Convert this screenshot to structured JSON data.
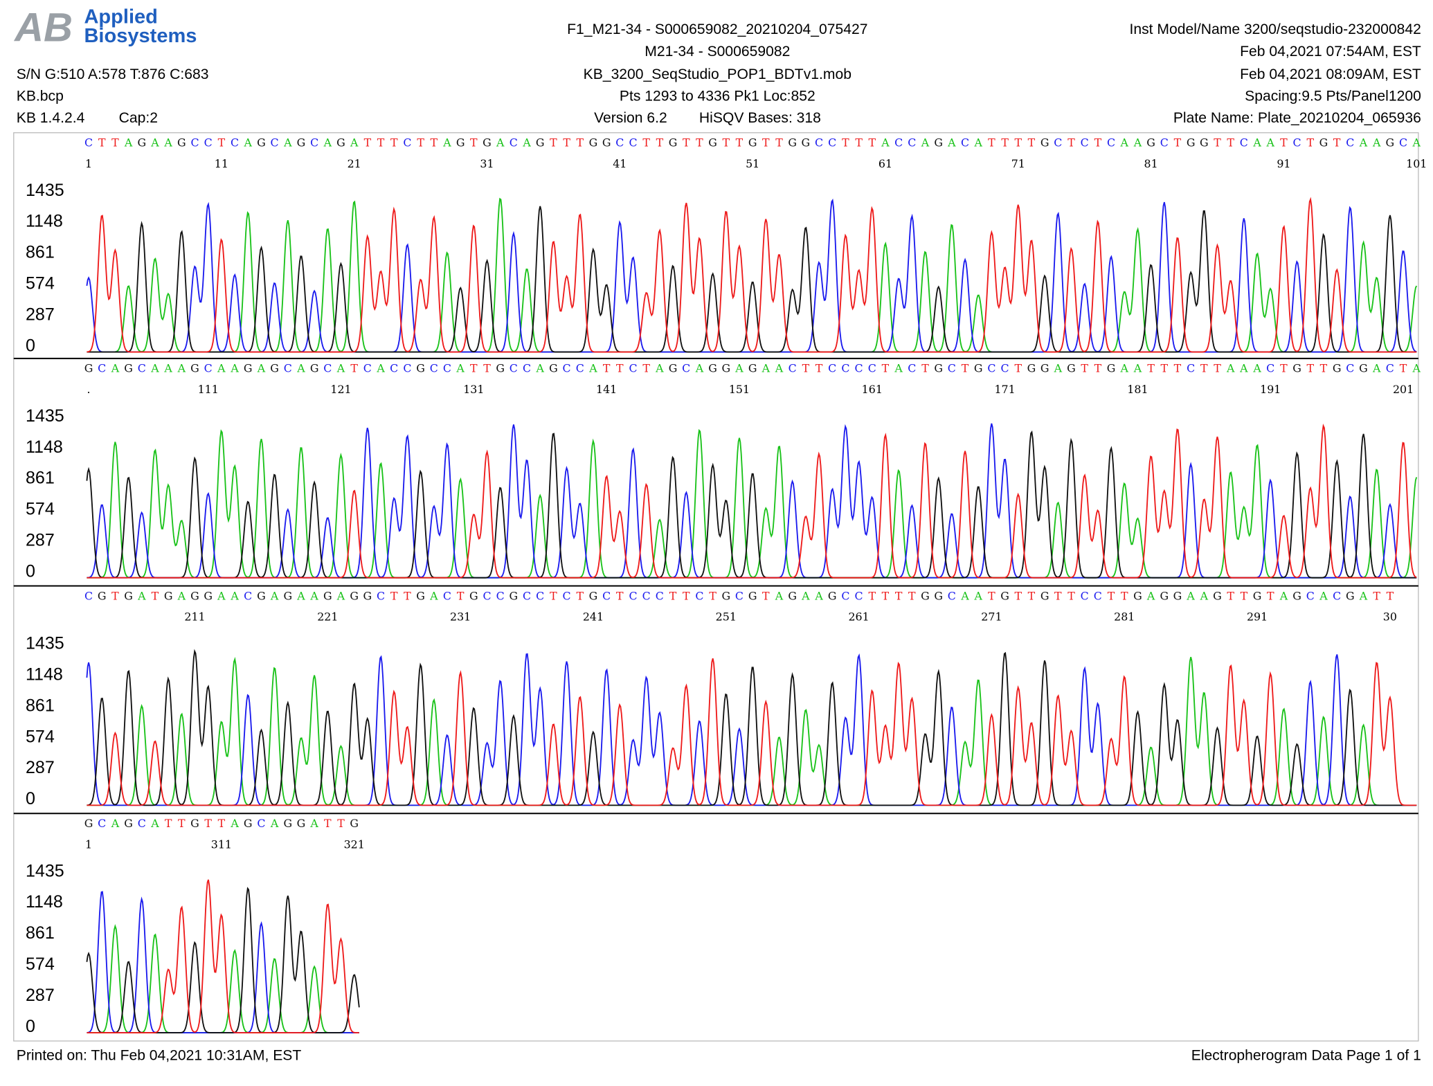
{
  "header": {
    "logo": {
      "line1": "Applied",
      "line2": "Biosystems"
    },
    "left": [
      "S/N G:510 A:578 T:876 C:683",
      "KB.bcp",
      "KB 1.4.2.4",
      "Cap:2"
    ],
    "center": [
      "F1_M21-34 - S000659082_20210204_075427",
      "M21-34 - S000659082",
      "KB_3200_SeqStudio_POP1_BDTv1.mob",
      "Pts 1293 to 4336 Pk1 Loc:852",
      "Version 6.2",
      "HiSQV Bases: 318"
    ],
    "right": [
      "Inst Model/Name 3200/seqstudio-232000842",
      "Feb 04,2021 07:54AM, EST",
      "Feb 04,2021 08:09AM, EST",
      "Spacing:9.5  Pts/Panel1200",
      "Plate Name: Plate_20210204_065936"
    ]
  },
  "y_ticks": [
    0,
    287,
    574,
    861,
    1148,
    1435
  ],
  "panels": [
    {
      "bases": "CTTAGAAGCCTCAGCAGCAGATTTCTTAGTGACAGTTTGGCCTTGTTGTTGTTGGCCTTTACCAGACATTTTGCTCTCAAGCTGGTTCAATCTGTCAAGCA",
      "positions": [
        "1",
        "11",
        "21",
        "31",
        "41",
        "51",
        "61",
        "71",
        "81",
        "91",
        "101"
      ]
    },
    {
      "bases": "GCAGCAAAGCAAGAGCAGCATCACCGCCATTGCCAGCCATTCTAGCAGGAGAACTTCCCCTACTGCTGCCTGGAGTTGAATTTCTTAAACTGTTGCGACTA",
      "positions": [
        ".",
        "111",
        "121",
        "131",
        "141",
        "151",
        "161",
        "171",
        "181",
        "191",
        "201"
      ]
    },
    {
      "bases": "CGTGATGAGGAACGAGAAGAGGCTTGACTGCCGCCTCTGCTCCCTTCTGCGTAGAAGCCTTTTGGCAATGTTGTTCCTTGAGGAAGTTGTAGCACGATT",
      "positions": [
        "211",
        "221",
        "231",
        "241",
        "251",
        "261",
        "271",
        "281",
        "291",
        "30"
      ]
    },
    {
      "bases": "GCAGCATTGTTAGCAGGATTG",
      "positions": [
        "1",
        "311",
        "321"
      ]
    }
  ],
  "footer": {
    "left": "Printed on: Thu Feb 04,2021 10:31AM, EST",
    "right": "Electropherogram Data  Page 1 of 1"
  }
}
